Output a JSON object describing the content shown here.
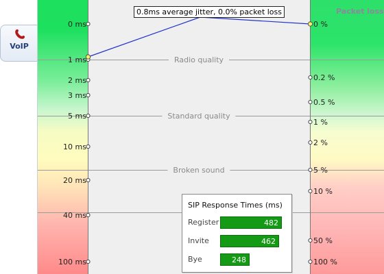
{
  "tab": {
    "label": "VoIP",
    "icon": "phone-icon"
  },
  "jitter": {
    "summary": "0.8ms average jitter, 0.0% packet loss",
    "average_ms": 0.8,
    "packet_loss_pct": 0.0
  },
  "packet_loss_title": "Packet loss",
  "left_axis_ticks": [
    "0 ms",
    "1 ms",
    "2 ms",
    "3 ms",
    "5 ms",
    "10 ms",
    "20 ms",
    "40 ms",
    "100 ms"
  ],
  "right_axis_ticks": [
    "0 %",
    "0.2 %",
    "0.5 %",
    "1 %",
    "2 %",
    "5 %",
    "10 %",
    "50 %",
    "100 %"
  ],
  "quality_bands": [
    "Radio quality",
    "Standard quality",
    "Broken sound"
  ],
  "sip": {
    "title": "SIP Response Times (ms)",
    "rows": [
      {
        "name": "Register",
        "value": 482
      },
      {
        "name": "Invite",
        "value": 462
      },
      {
        "name": "Bye",
        "value": 248
      }
    ]
  },
  "colors": {
    "line": "#2233cc",
    "marker": "#f3f06a",
    "bar": "#149a14"
  }
}
